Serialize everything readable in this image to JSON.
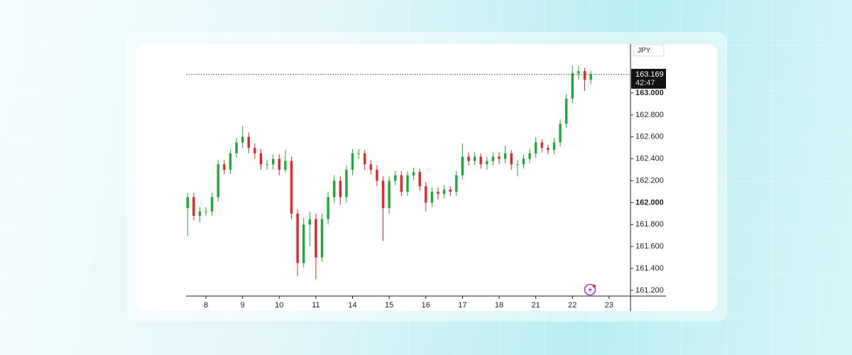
{
  "chart_data": {
    "type": "candlestick",
    "currency": "JPY",
    "countdown": "42:47",
    "last_price": 163.169,
    "up_color": "#22a83a",
    "down_color": "#e3262c",
    "x": [
      0,
      1,
      2,
      3,
      4,
      5,
      6,
      7,
      8,
      9,
      10,
      11,
      12,
      13,
      14,
      15,
      16,
      17,
      18,
      19,
      20,
      21,
      22,
      23,
      24,
      25,
      26,
      27,
      28,
      29,
      30,
      31,
      32,
      33,
      34,
      35,
      36,
      37,
      38,
      39,
      40,
      41,
      42,
      43,
      44,
      45,
      46,
      47,
      48,
      49,
      50,
      51,
      52,
      53,
      54,
      55,
      56,
      57,
      58,
      59,
      60,
      61,
      62,
      63,
      64,
      65,
      66
    ],
    "open": [
      161.95,
      162.05,
      161.88,
      161.92,
      161.92,
      162.05,
      162.35,
      162.3,
      162.45,
      162.55,
      162.6,
      162.5,
      162.45,
      162.35,
      162.35,
      162.4,
      162.3,
      162.38,
      161.9,
      161.45,
      161.8,
      161.85,
      161.5,
      161.85,
      162.05,
      162.2,
      162.05,
      162.3,
      162.45,
      162.45,
      162.35,
      162.3,
      162.2,
      161.95,
      162.2,
      162.25,
      162.1,
      162.25,
      162.28,
      162.15,
      162.0,
      162.1,
      162.08,
      162.12,
      162.1,
      162.25,
      162.42,
      162.38,
      162.42,
      162.35,
      162.38,
      162.42,
      162.4,
      162.45,
      162.35,
      162.35,
      162.4,
      162.45,
      162.55,
      162.5,
      162.48,
      162.55,
      162.72,
      162.95,
      163.18,
      163.2,
      163.12
    ],
    "high": [
      162.09,
      162.09,
      161.96,
      161.96,
      162.09,
      162.39,
      162.39,
      162.49,
      162.59,
      162.7,
      162.64,
      162.54,
      162.49,
      162.39,
      162.44,
      162.44,
      162.48,
      162.42,
      161.94,
      161.86,
      161.92,
      161.9,
      161.9,
      162.1,
      162.25,
      162.24,
      162.34,
      162.49,
      162.49,
      162.48,
      162.39,
      162.34,
      162.24,
      162.24,
      162.29,
      162.29,
      162.29,
      162.32,
      162.31,
      162.19,
      162.14,
      162.14,
      162.16,
      162.15,
      162.29,
      162.54,
      162.46,
      162.46,
      162.45,
      162.42,
      162.46,
      162.46,
      162.52,
      162.48,
      162.39,
      162.44,
      162.49,
      162.6,
      162.58,
      162.53,
      162.59,
      162.76,
      162.99,
      163.25,
      163.25,
      163.23,
      163.2
    ],
    "low": [
      161.7,
      161.84,
      161.82,
      161.88,
      161.88,
      162.01,
      162.26,
      162.26,
      162.41,
      162.5,
      162.45,
      162.4,
      162.3,
      162.3,
      162.3,
      162.25,
      162.27,
      161.85,
      161.33,
      161.41,
      161.6,
      161.3,
      161.46,
      161.8,
      162.0,
      161.98,
      162.0,
      162.25,
      162.4,
      162.3,
      162.26,
      162.15,
      161.65,
      161.9,
      162.16,
      162.06,
      162.06,
      162.21,
      162.11,
      161.92,
      161.96,
      162.03,
      162.04,
      162.06,
      162.06,
      162.21,
      162.34,
      162.34,
      162.31,
      162.3,
      162.34,
      162.35,
      162.36,
      162.3,
      162.24,
      162.31,
      162.36,
      162.41,
      162.46,
      162.44,
      162.44,
      162.51,
      162.68,
      162.91,
      163.12,
      163.02,
      163.08
    ],
    "close": [
      162.05,
      161.88,
      161.92,
      161.92,
      162.05,
      162.35,
      162.3,
      162.45,
      162.55,
      162.6,
      162.5,
      162.45,
      162.35,
      162.35,
      162.4,
      162.3,
      162.38,
      161.9,
      161.45,
      161.8,
      161.85,
      161.5,
      161.85,
      162.05,
      162.2,
      162.05,
      162.3,
      162.45,
      162.45,
      162.35,
      162.3,
      162.2,
      161.95,
      162.2,
      162.25,
      162.1,
      162.25,
      162.28,
      162.15,
      162.0,
      162.1,
      162.08,
      162.12,
      162.1,
      162.25,
      162.42,
      162.38,
      162.42,
      162.35,
      162.38,
      162.42,
      162.4,
      162.45,
      162.35,
      162.35,
      162.4,
      162.45,
      162.55,
      162.5,
      162.48,
      162.55,
      162.72,
      162.95,
      163.18,
      163.2,
      163.12,
      163.169
    ],
    "xlim": [
      -0.26,
      72.5
    ],
    "xticks": [
      {
        "value": 3,
        "label": "8"
      },
      {
        "value": 9,
        "label": "9"
      },
      {
        "value": 15,
        "label": "10"
      },
      {
        "value": 21,
        "label": "11"
      },
      {
        "value": 27,
        "label": "14"
      },
      {
        "value": 33,
        "label": "15"
      },
      {
        "value": 39,
        "label": "16"
      },
      {
        "value": 45,
        "label": "17"
      },
      {
        "value": 51,
        "label": "18"
      },
      {
        "value": 57,
        "label": "21"
      },
      {
        "value": 63,
        "label": "22"
      },
      {
        "value": 69,
        "label": "23"
      }
    ],
    "ylim": [
      161.148,
      163.447
    ],
    "yticks": [
      {
        "value": 161.2,
        "label": "161.200"
      },
      {
        "value": 161.4,
        "label": "161.400"
      },
      {
        "value": 161.6,
        "label": "161.600"
      },
      {
        "value": 161.8,
        "label": "161.800"
      },
      {
        "value": 162,
        "label": "162.000",
        "bold": true
      },
      {
        "value": 162.2,
        "label": "162.200"
      },
      {
        "value": 162.4,
        "label": "162.400"
      },
      {
        "value": 162.6,
        "label": "162.600"
      },
      {
        "value": 162.8,
        "label": "162.800"
      },
      {
        "value": 163,
        "label": "163.000",
        "bold": true
      }
    ]
  }
}
